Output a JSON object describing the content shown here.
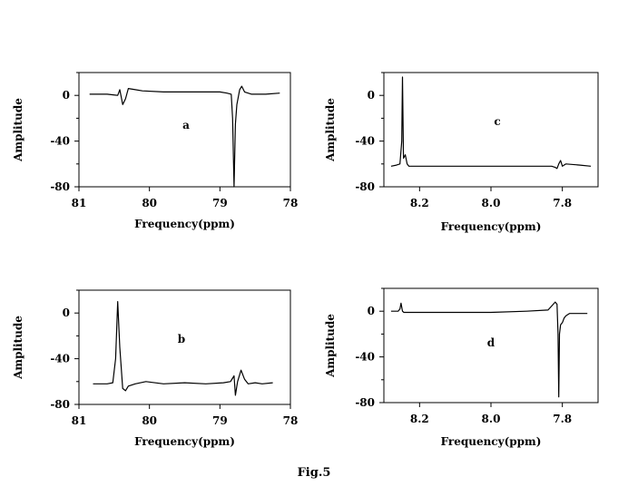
{
  "figure_caption": "Fig.5",
  "chart_data": [
    {
      "type": "line",
      "panel_label": "a",
      "xlabel": "Frequency(ppm)",
      "ylabel": "Amplitude",
      "xlim": [
        81,
        78
      ],
      "ylim": [
        -80,
        20
      ],
      "x_ticks": [
        81,
        80,
        79,
        78
      ],
      "y_ticks": [
        0,
        -40,
        -80
      ],
      "x_tick_labels": [
        "81",
        "80",
        "79",
        "78"
      ],
      "y_tick_labels": [
        "0",
        "-40",
        "-80"
      ],
      "series": [
        {
          "name": "a",
          "x": [
            80.85,
            80.6,
            80.45,
            80.42,
            80.38,
            80.34,
            80.3,
            80.2,
            80.1,
            79.8,
            79.4,
            79.0,
            78.9,
            78.84,
            78.82,
            78.8,
            78.78,
            78.76,
            78.72,
            78.69,
            78.65,
            78.55,
            78.45,
            78.35,
            78.15
          ],
          "y": [
            1,
            1,
            0,
            5,
            -8,
            -3,
            6,
            5,
            4,
            3,
            3,
            3,
            2,
            1,
            -20,
            -80,
            -25,
            -8,
            5,
            8,
            3,
            1,
            1,
            1,
            2
          ]
        }
      ]
    },
    {
      "type": "line",
      "panel_label": "b",
      "xlabel": "Frequency(ppm)",
      "ylabel": "Amplitude",
      "xlim": [
        81,
        78
      ],
      "ylim": [
        -80,
        20
      ],
      "x_ticks": [
        81,
        80,
        79,
        78
      ],
      "y_ticks": [
        0,
        -40,
        -80
      ],
      "x_tick_labels": [
        "81",
        "80",
        "79",
        "78"
      ],
      "y_tick_labels": [
        "0",
        "-40",
        "-80"
      ],
      "series": [
        {
          "name": "b",
          "x": [
            80.8,
            80.6,
            80.52,
            80.48,
            80.45,
            80.42,
            80.38,
            80.34,
            80.3,
            80.2,
            80.05,
            79.8,
            79.5,
            79.2,
            78.95,
            78.85,
            78.8,
            78.78,
            78.75,
            78.7,
            78.65,
            78.6,
            78.5,
            78.4,
            78.25
          ],
          "y": [
            -62,
            -62,
            -61,
            -40,
            10,
            -30,
            -66,
            -68,
            -64,
            -62,
            -60,
            -62,
            -61,
            -62,
            -61,
            -60,
            -55,
            -72,
            -60,
            -50,
            -58,
            -62,
            -61,
            -62,
            -61
          ]
        }
      ]
    },
    {
      "type": "line",
      "panel_label": "c",
      "xlabel": "Frequency(ppm)",
      "ylabel": "Amplitude",
      "xlim": [
        8.3,
        7.7
      ],
      "ylim": [
        -80,
        20
      ],
      "x_ticks": [
        8.2,
        8.0,
        7.8
      ],
      "y_ticks": [
        0,
        -40,
        -80
      ],
      "x_tick_labels": [
        "8.2",
        "8.0",
        "7.8"
      ],
      "y_tick_labels": [
        "0",
        "-40",
        "-80"
      ],
      "series": [
        {
          "name": "c",
          "x": [
            8.28,
            8.265,
            8.255,
            8.25,
            8.248,
            8.245,
            8.24,
            8.235,
            8.23,
            8.22,
            8.2,
            8.1,
            8.0,
            7.9,
            7.83,
            7.82,
            7.815,
            7.81,
            7.805,
            7.8,
            7.79,
            7.75,
            7.72
          ],
          "y": [
            -62,
            -61,
            -60,
            -40,
            16,
            -55,
            -52,
            -60,
            -62,
            -62,
            -62,
            -62,
            -62,
            -62,
            -62,
            -63,
            -64,
            -60,
            -57,
            -62,
            -60,
            -61,
            -62
          ]
        }
      ]
    },
    {
      "type": "line",
      "panel_label": "d",
      "xlabel": "Frequency(ppm)",
      "ylabel": "Amplitude",
      "xlim": [
        8.3,
        7.7
      ],
      "ylim": [
        -80,
        20
      ],
      "x_ticks": [
        8.2,
        8.0,
        7.8
      ],
      "y_ticks": [
        0,
        -40,
        -80
      ],
      "x_tick_labels": [
        "8.2",
        "8.0",
        "7.8"
      ],
      "y_tick_labels": [
        "0",
        "-40",
        "-80"
      ],
      "series": [
        {
          "name": "d",
          "x": [
            8.28,
            8.26,
            8.255,
            8.252,
            8.248,
            8.244,
            8.24,
            8.23,
            8.2,
            8.1,
            8.0,
            7.9,
            7.84,
            7.82,
            7.815,
            7.812,
            7.81,
            7.808,
            7.805,
            7.8,
            7.795,
            7.79,
            7.78,
            7.75,
            7.73
          ],
          "y": [
            0,
            0,
            2,
            7,
            0,
            -1,
            -1,
            -1,
            -1,
            -1,
            -1,
            0,
            1,
            8,
            6,
            -20,
            -75,
            -20,
            -12,
            -10,
            -6,
            -4,
            -2,
            -2,
            -2
          ]
        }
      ]
    }
  ]
}
